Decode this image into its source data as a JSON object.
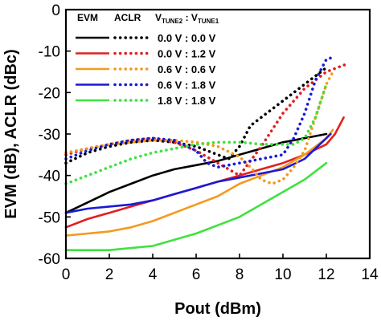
{
  "chart_data": {
    "type": "line",
    "xlabel": "Pout (dBm)",
    "ylabel": "EVM (dB), ACLR (dBc)",
    "xlim": [
      0,
      14
    ],
    "ylim": [
      -60,
      0
    ],
    "xticks": [
      0,
      2,
      4,
      6,
      8,
      10,
      12,
      14
    ],
    "yticks": [
      0,
      -10,
      -20,
      -30,
      -40,
      -50,
      -60
    ],
    "grid": false,
    "legend": {
      "placement": "top-left",
      "header_evm": "EVM",
      "header_aclr": "ACLR",
      "header_vtune": "VTUNE2 : VTUNE1",
      "header_vtune_parts": [
        "V",
        "TUNE2",
        " : V",
        "TUNE1"
      ],
      "entries": [
        {
          "label": "0.0 V : 0.0 V",
          "color": "#000000"
        },
        {
          "label": "0.0 V : 1.2 V",
          "color": "#e02020"
        },
        {
          "label": "0.6 V : 0.6 V",
          "color": "#f39a1e"
        },
        {
          "label": "0.6 V : 1.8 V",
          "color": "#1a1ad6"
        },
        {
          "label": "1.8 V : 1.8 V",
          "color": "#3fe23f"
        }
      ]
    },
    "series": [
      {
        "name": "EVM 0.0 V : 0.0 V",
        "metric": "EVM",
        "style": "solid",
        "color": "#000000",
        "x": [
          0,
          1,
          2,
          3,
          4,
          5,
          6,
          7,
          8,
          9,
          10,
          11,
          12
        ],
        "y": [
          -49,
          -46.5,
          -44,
          -42,
          -40,
          -38.5,
          -37.5,
          -36.5,
          -35,
          -33.5,
          -32,
          -31,
          -30
        ]
      },
      {
        "name": "EVM 0.0 V : 1.2 V",
        "metric": "EVM",
        "style": "solid",
        "color": "#e02020",
        "x": [
          0,
          1,
          2,
          3,
          4,
          5,
          6,
          7,
          8,
          9,
          10,
          11,
          12,
          12.4,
          12.8
        ],
        "y": [
          -52.5,
          -50.5,
          -49,
          -47.5,
          -46,
          -44.5,
          -43,
          -41.5,
          -40,
          -38.5,
          -37,
          -35,
          -32.5,
          -30,
          -26
        ]
      },
      {
        "name": "EVM 0.6 V : 0.6 V",
        "metric": "EVM",
        "style": "solid",
        "color": "#f39a1e",
        "x": [
          0,
          1,
          2,
          3,
          4,
          5,
          6,
          7,
          8,
          9,
          10,
          11,
          11.5,
          12,
          12.3
        ],
        "y": [
          -54.5,
          -54,
          -53.5,
          -52.5,
          -51,
          -49,
          -47,
          -45,
          -42,
          -40,
          -38,
          -35,
          -33,
          -31,
          -29
        ]
      },
      {
        "name": "EVM 0.6 V : 1.8 V",
        "metric": "EVM",
        "style": "solid",
        "color": "#1a1ad6",
        "x": [
          0,
          1,
          2,
          3,
          4,
          5,
          6,
          7,
          8,
          9,
          10,
          11,
          11.5,
          12,
          12.2
        ],
        "y": [
          -49,
          -48,
          -47.5,
          -47,
          -46,
          -44.5,
          -43,
          -41.5,
          -40.5,
          -39.5,
          -38.5,
          -36,
          -33.5,
          -31,
          -30
        ]
      },
      {
        "name": "EVM 1.8 V : 1.8 V",
        "metric": "EVM",
        "style": "solid",
        "color": "#3fe23f",
        "x": [
          0,
          1,
          2,
          3,
          4,
          5,
          6,
          7,
          8,
          9,
          10,
          11,
          12
        ],
        "y": [
          -58,
          -58,
          -58,
          -57.5,
          -57,
          -55.5,
          -54,
          -52,
          -50,
          -47,
          -44,
          -41,
          -37
        ]
      },
      {
        "name": "ACLR 0.0 V : 0.0 V",
        "metric": "ACLR",
        "style": "dotted",
        "color": "#000000",
        "x": [
          0,
          1,
          2,
          3,
          4,
          5,
          6,
          7,
          7.5,
          8,
          8.5,
          9,
          10,
          11,
          11.5,
          12
        ],
        "y": [
          -37,
          -34.5,
          -33,
          -32,
          -31.5,
          -32,
          -33,
          -35,
          -36,
          -33,
          -28,
          -26,
          -22,
          -18,
          -16,
          -14
        ]
      },
      {
        "name": "ACLR 0.0 V : 1.2 V",
        "metric": "ACLR",
        "style": "dotted",
        "color": "#e02020",
        "x": [
          0,
          1,
          2,
          3,
          4,
          5,
          6,
          7,
          8,
          9,
          10,
          11,
          11.5,
          12,
          12.5,
          13
        ],
        "y": [
          -35,
          -33.5,
          -32.5,
          -31.5,
          -31,
          -32,
          -34,
          -37,
          -40,
          -33,
          -25,
          -19,
          -17,
          -15,
          -14,
          -13
        ]
      },
      {
        "name": "ACLR 0.6 V : 0.6 V",
        "metric": "ACLR",
        "style": "dotted",
        "color": "#f39a1e",
        "x": [
          0,
          1,
          2,
          3,
          4,
          5,
          6,
          7,
          8,
          8.5,
          9,
          9.5,
          10,
          10.5,
          11,
          11.5,
          12,
          12.3
        ],
        "y": [
          -34.5,
          -33.5,
          -32.5,
          -32,
          -31.5,
          -31.5,
          -32,
          -33,
          -35.5,
          -38,
          -41,
          -42,
          -41,
          -38,
          -34,
          -26,
          -18,
          -15
        ]
      },
      {
        "name": "ACLR 0.6 V : 1.8 V",
        "metric": "ACLR",
        "style": "dotted",
        "color": "#1a1ad6",
        "x": [
          0,
          1,
          2,
          3,
          4,
          5,
          6,
          6.5,
          7,
          8,
          9,
          10,
          10.5,
          11,
          11.5,
          12,
          12.3
        ],
        "y": [
          -36,
          -34,
          -32.5,
          -31.5,
          -31,
          -31.5,
          -34,
          -37,
          -38,
          -37,
          -36,
          -35,
          -31,
          -25,
          -17,
          -12,
          -11.5
        ]
      },
      {
        "name": "ACLR 1.8 V : 1.8 V",
        "metric": "ACLR",
        "style": "dotted",
        "color": "#3fe23f",
        "x": [
          0,
          1,
          2,
          3,
          4,
          5,
          6,
          7,
          8,
          8.5,
          9,
          9.5,
          10,
          10.5,
          11,
          11.5,
          12
        ],
        "y": [
          -42,
          -40,
          -38,
          -36,
          -34.5,
          -33.5,
          -32.5,
          -32,
          -32,
          -32.2,
          -32.5,
          -32.5,
          -32.5,
          -32.5,
          -31,
          -26,
          -18
        ]
      }
    ]
  }
}
